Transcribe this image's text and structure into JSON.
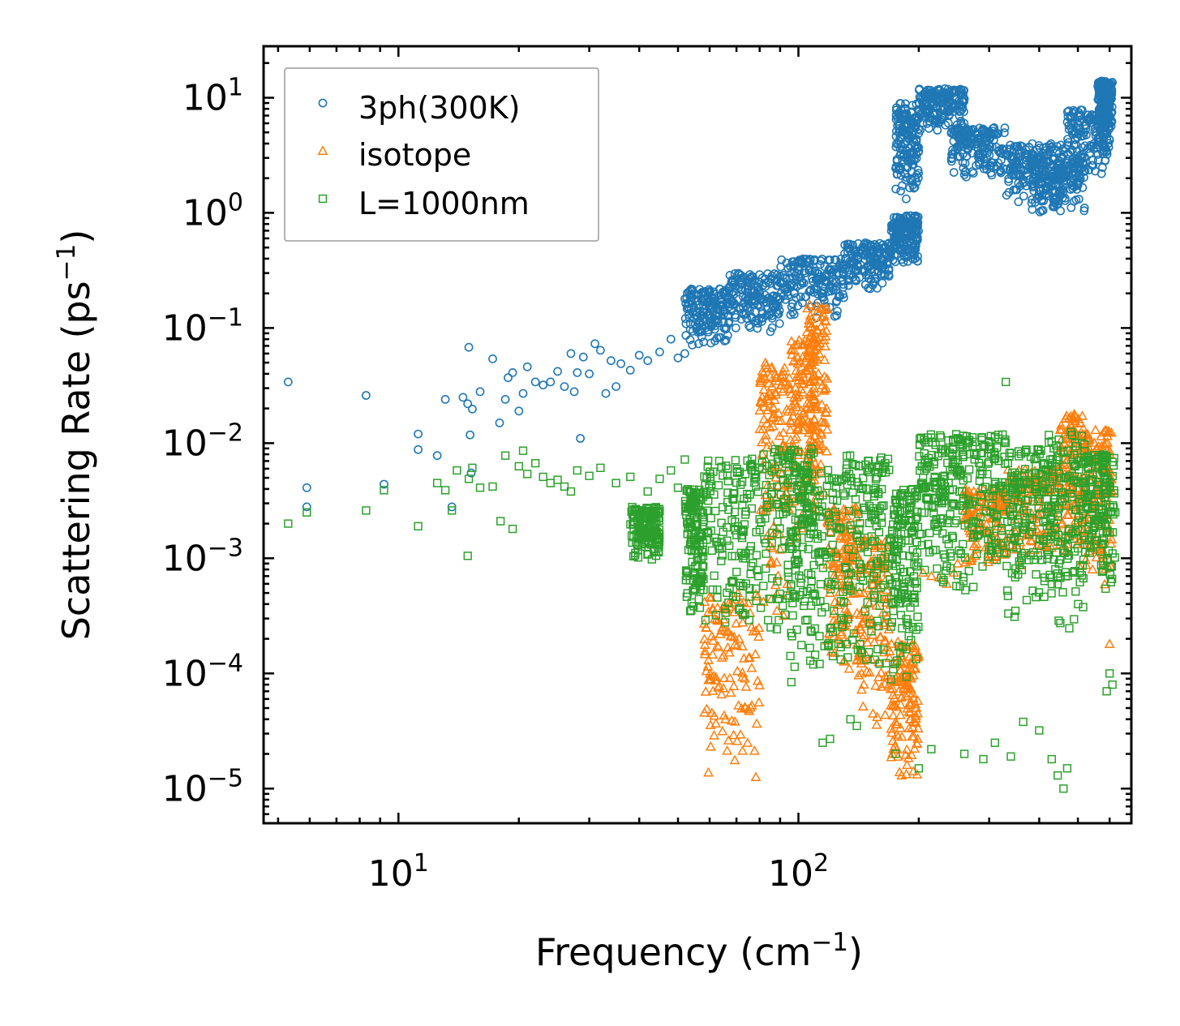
{
  "chart_data": {
    "type": "scatter",
    "xscale": "log",
    "yscale": "log",
    "xlim": [
      4.6,
      680
    ],
    "ylim": [
      5e-06,
      28
    ],
    "xlabel": {
      "base": "Frequency (cm",
      "sup": "−1",
      "tail": ")"
    },
    "ylabel": {
      "base": "Scattering Rate (ps",
      "sup": "−1",
      "tail": ")"
    },
    "xticks": [
      {
        "value": 10,
        "base": "10",
        "exp": "1"
      },
      {
        "value": 100,
        "base": "10",
        "exp": "2"
      }
    ],
    "yticks": [
      {
        "value": 10,
        "base": "10",
        "exp": "1"
      },
      {
        "value": 1,
        "base": "10",
        "exp": "0"
      },
      {
        "value": 0.1,
        "base": "10",
        "exp": "−1"
      },
      {
        "value": 0.01,
        "base": "10",
        "exp": "−2"
      },
      {
        "value": 0.001,
        "base": "10",
        "exp": "−3"
      },
      {
        "value": 0.0001,
        "base": "10",
        "exp": "−4"
      },
      {
        "value": 1e-05,
        "base": "10",
        "exp": "−5"
      }
    ],
    "legend": {
      "position": "upper-left"
    },
    "series": [
      {
        "name": "3ph(300K)",
        "marker": "circle",
        "color": "#1f77b4",
        "points": [
          [
            5.3,
            0.034
          ],
          [
            5.9,
            0.0041
          ],
          [
            5.9,
            0.0028
          ],
          [
            8.3,
            0.026
          ],
          [
            9.2,
            0.0044
          ],
          [
            11.2,
            0.012
          ],
          [
            11.2,
            0.0088
          ],
          [
            12.5,
            0.0078
          ],
          [
            13.1,
            0.024
          ],
          [
            13.6,
            0.0028
          ],
          [
            14.5,
            0.025
          ],
          [
            14.9,
            0.022
          ],
          [
            15.0,
            0.068
          ],
          [
            15.1,
            0.0118
          ],
          [
            15.2,
            0.0055
          ],
          [
            15.3,
            0.0198
          ],
          [
            16.0,
            0.028
          ],
          [
            17.2,
            0.054
          ],
          [
            17.9,
            0.015
          ],
          [
            18.5,
            0.024
          ],
          [
            18.8,
            0.037
          ],
          [
            19.3,
            0.041
          ],
          [
            20.0,
            0.019
          ],
          [
            20.5,
            0.027
          ],
          [
            21.0,
            0.046
          ],
          [
            22.0,
            0.034
          ],
          [
            23.0,
            0.032
          ],
          [
            24.0,
            0.034
          ],
          [
            25.0,
            0.042
          ],
          [
            26.0,
            0.031
          ],
          [
            27.0,
            0.06
          ],
          [
            27.5,
            0.028
          ],
          [
            28.0,
            0.041
          ],
          [
            28.5,
            0.011
          ],
          [
            29.0,
            0.056
          ],
          [
            30.0,
            0.04
          ],
          [
            31.0,
            0.073
          ],
          [
            32.0,
            0.064
          ],
          [
            33.0,
            0.027
          ],
          [
            34.0,
            0.052
          ],
          [
            35.0,
            0.031
          ],
          [
            36.0,
            0.049
          ],
          [
            38.0,
            0.043
          ],
          [
            40.0,
            0.058
          ],
          [
            42.0,
            0.052
          ],
          [
            45.0,
            0.062
          ],
          [
            48.0,
            0.08
          ],
          [
            50.0,
            0.055
          ],
          [
            52.0,
            0.06
          ]
        ],
        "ranges": [
          [
            52,
            67,
            0.07,
            0.22
          ],
          [
            67,
            90,
            0.09,
            0.3
          ],
          [
            90,
            130,
            0.12,
            0.4
          ],
          [
            130,
            170,
            0.2,
            0.55
          ],
          [
            170,
            200,
            0.35,
            0.95
          ],
          [
            175,
            200,
            1.3,
            9.0
          ],
          [
            200,
            260,
            5.0,
            12.0
          ],
          [
            240,
            330,
            2.0,
            5.5
          ],
          [
            330,
            470,
            1.2,
            4.0
          ],
          [
            380,
            520,
            1.0,
            3.2
          ],
          [
            470,
            600,
            2.0,
            8.0
          ],
          [
            560,
            610,
            5.0,
            14.0
          ]
        ]
      },
      {
        "name": "isotope",
        "marker": "triangle",
        "color": "#ff7f0e",
        "points": [
          [
            205,
            0.00075
          ],
          [
            215,
            0.0007
          ],
          [
            225,
            0.00068
          ],
          [
            235,
            0.0006
          ],
          [
            245,
            0.00075
          ],
          [
            250,
            0.0009
          ],
          [
            600,
            0.00018
          ],
          [
            560,
            0.0022
          ],
          [
            575,
            0.0012
          ]
        ],
        "ranges": [
          [
            58,
            80,
            1e-05,
            0.0005
          ],
          [
            80,
            95,
            0.0002,
            0.05
          ],
          [
            95,
            110,
            0.001,
            0.08
          ],
          [
            105,
            118,
            0.002,
            0.16
          ],
          [
            118,
            140,
            0.0001,
            0.003
          ],
          [
            140,
            170,
            3e-05,
            0.0015
          ],
          [
            170,
            200,
            1e-05,
            0.0002
          ],
          [
            260,
            330,
            0.0008,
            0.004
          ],
          [
            330,
            450,
            0.0008,
            0.006
          ],
          [
            450,
            520,
            0.0008,
            0.018
          ],
          [
            520,
            610,
            0.0005,
            0.014
          ]
        ]
      },
      {
        "name": "L=1000nm",
        "marker": "square",
        "color": "#2ca02c",
        "points": [
          [
            5.3,
            0.002
          ],
          [
            5.9,
            0.0025
          ],
          [
            8.3,
            0.0026
          ],
          [
            9.2,
            0.0039
          ],
          [
            11.2,
            0.0019
          ],
          [
            12.5,
            0.0045
          ],
          [
            13.1,
            0.0039
          ],
          [
            13.6,
            0.0026
          ],
          [
            14.0,
            0.0058
          ],
          [
            14.9,
            0.00105
          ],
          [
            15.0,
            0.0049
          ],
          [
            15.3,
            0.0061
          ],
          [
            16.0,
            0.0041
          ],
          [
            17.2,
            0.0042
          ],
          [
            18.0,
            0.0021
          ],
          [
            18.5,
            0.0078
          ],
          [
            19.3,
            0.0018
          ],
          [
            20.0,
            0.0063
          ],
          [
            20.5,
            0.0086
          ],
          [
            21.0,
            0.0054
          ],
          [
            22.0,
            0.0067
          ],
          [
            23.0,
            0.0051
          ],
          [
            24.0,
            0.0045
          ],
          [
            25.0,
            0.0048
          ],
          [
            26.0,
            0.0042
          ],
          [
            27.0,
            0.0038
          ],
          [
            28.0,
            0.0058
          ],
          [
            30.0,
            0.0052
          ],
          [
            32.0,
            0.0061
          ],
          [
            35.0,
            0.0045
          ],
          [
            38.0,
            0.0051
          ],
          [
            40.0,
            0.0017
          ],
          [
            42.0,
            0.0038
          ],
          [
            45.0,
            0.0049
          ],
          [
            48.0,
            0.0058
          ],
          [
            50.0,
            0.0041
          ],
          [
            52.0,
            0.0072
          ],
          [
            115,
            2.5e-05
          ],
          [
            120,
            2.7e-05
          ],
          [
            135,
            4e-05
          ],
          [
            140,
            3.5e-05
          ],
          [
            175,
            2e-05
          ],
          [
            200,
            1.5e-05
          ],
          [
            215,
            2.2e-05
          ],
          [
            260,
            2e-05
          ],
          [
            290,
            1.8e-05
          ],
          [
            310,
            2.5e-05
          ],
          [
            340,
            1.9e-05
          ],
          [
            365,
            3.8e-05
          ],
          [
            400,
            3.2e-05
          ],
          [
            430,
            1.8e-05
          ],
          [
            445,
            1.3e-05
          ],
          [
            460,
            1e-05
          ],
          [
            470,
            1.5e-05
          ],
          [
            330,
            0.034
          ],
          [
            480,
            0.0125
          ],
          [
            600,
            0.0001
          ],
          [
            590,
            7e-05
          ],
          [
            610,
            8e-05
          ]
        ],
        "ranges": [
          [
            38,
            45,
            0.0009,
            0.0028
          ],
          [
            52,
            58,
            0.0003,
            0.004
          ],
          [
            58,
            80,
            0.0002,
            0.008
          ],
          [
            80,
            110,
            0.0002,
            0.009
          ],
          [
            95,
            130,
            8e-05,
            0.006
          ],
          [
            130,
            170,
            0.0001,
            0.008
          ],
          [
            170,
            200,
            8e-05,
            0.004
          ],
          [
            200,
            250,
            0.0005,
            0.012
          ],
          [
            250,
            330,
            0.0004,
            0.012
          ],
          [
            330,
            420,
            0.0003,
            0.009
          ],
          [
            420,
            520,
            0.0002,
            0.012
          ],
          [
            520,
            620,
            0.0005,
            0.008
          ]
        ]
      }
    ]
  }
}
